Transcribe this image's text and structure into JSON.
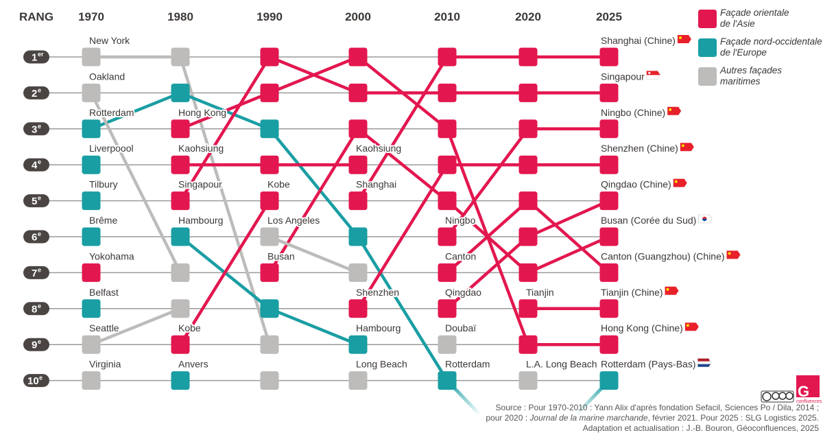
{
  "chart_data": {
    "type": "bump",
    "rank_header": "RANG",
    "rank_labels": [
      {
        "n": "1",
        "sup": "er"
      },
      {
        "n": "2",
        "sup": "e"
      },
      {
        "n": "3",
        "sup": "e"
      },
      {
        "n": "4",
        "sup": "e"
      },
      {
        "n": "5",
        "sup": "e"
      },
      {
        "n": "6",
        "sup": "e"
      },
      {
        "n": "7",
        "sup": "e"
      },
      {
        "n": "8",
        "sup": "e"
      },
      {
        "n": "9",
        "sup": "e"
      },
      {
        "n": "10",
        "sup": "e"
      }
    ],
    "colors": {
      "asie": "#e3174f",
      "europe": "#199ea3",
      "autres": "#bdbcbb"
    },
    "legend": [
      {
        "cat": "asie",
        "lines": [
          "Façade orientale",
          "de l'Asie"
        ]
      },
      {
        "cat": "europe",
        "lines": [
          "Façade nord-occidentale",
          "de l'Europe"
        ]
      },
      {
        "cat": "autres",
        "lines": [
          "Autres façades",
          "maritimes"
        ]
      }
    ],
    "columns": [
      {
        "year": "1970",
        "ports": [
          {
            "rank": 1,
            "label": "New York",
            "cat": "autres"
          },
          {
            "rank": 2,
            "label": "Oakland",
            "cat": "autres"
          },
          {
            "rank": 3,
            "label": "Rotterdam",
            "cat": "europe"
          },
          {
            "rank": 4,
            "label": "Liverpoool",
            "cat": "europe"
          },
          {
            "rank": 5,
            "label": "Tilbury",
            "cat": "europe"
          },
          {
            "rank": 6,
            "label": "Brême",
            "cat": "europe"
          },
          {
            "rank": 7,
            "label": "Yokohama",
            "cat": "asie"
          },
          {
            "rank": 8,
            "label": "Belfast",
            "cat": "europe"
          },
          {
            "rank": 9,
            "label": "Seattle",
            "cat": "autres"
          },
          {
            "rank": 10,
            "label": "Virginia",
            "cat": "autres"
          }
        ]
      },
      {
        "year": "1980",
        "ports": [
          {
            "rank": 1,
            "label": "",
            "cat": "autres"
          },
          {
            "rank": 2,
            "label": "",
            "cat": "europe"
          },
          {
            "rank": 3,
            "label": "Hong Kong",
            "cat": "asie"
          },
          {
            "rank": 4,
            "label": "Kaohsiung",
            "cat": "asie"
          },
          {
            "rank": 5,
            "label": "Singapour",
            "cat": "asie"
          },
          {
            "rank": 6,
            "label": "Hambourg",
            "cat": "europe"
          },
          {
            "rank": 7,
            "label": "",
            "cat": "autres"
          },
          {
            "rank": 8,
            "label": "",
            "cat": "autres"
          },
          {
            "rank": 9,
            "label": "Kobe",
            "cat": "asie"
          },
          {
            "rank": 10,
            "label": "Anvers",
            "cat": "europe"
          }
        ]
      },
      {
        "year": "1990",
        "ports": [
          {
            "rank": 1,
            "label": "",
            "cat": "asie"
          },
          {
            "rank": 2,
            "label": "",
            "cat": "asie"
          },
          {
            "rank": 3,
            "label": "",
            "cat": "europe"
          },
          {
            "rank": 4,
            "label": "",
            "cat": "asie"
          },
          {
            "rank": 5,
            "label": "Kobe",
            "cat": "asie"
          },
          {
            "rank": 6,
            "label": "Los Angeles",
            "cat": "autres"
          },
          {
            "rank": 7,
            "label": "Busan",
            "cat": "asie"
          },
          {
            "rank": 8,
            "label": "",
            "cat": "europe"
          },
          {
            "rank": 9,
            "label": "",
            "cat": "autres"
          },
          {
            "rank": 10,
            "label": "",
            "cat": "autres"
          }
        ]
      },
      {
        "year": "2000",
        "ports": [
          {
            "rank": 1,
            "label": "",
            "cat": "asie"
          },
          {
            "rank": 2,
            "label": "",
            "cat": "asie"
          },
          {
            "rank": 3,
            "label": "",
            "cat": "asie"
          },
          {
            "rank": 4,
            "label": "Kaohsiung",
            "cat": "asie"
          },
          {
            "rank": 5,
            "label": "Shanghai",
            "cat": "asie"
          },
          {
            "rank": 6,
            "label": "",
            "cat": "europe"
          },
          {
            "rank": 7,
            "label": "",
            "cat": "autres"
          },
          {
            "rank": 8,
            "label": "Shenzhen",
            "cat": "asie"
          },
          {
            "rank": 9,
            "label": "Hambourg",
            "cat": "europe"
          },
          {
            "rank": 10,
            "label": "Long Beach",
            "cat": "autres"
          }
        ]
      },
      {
        "year": "2010",
        "ports": [
          {
            "rank": 1,
            "label": "",
            "cat": "asie"
          },
          {
            "rank": 2,
            "label": "",
            "cat": "asie"
          },
          {
            "rank": 3,
            "label": "",
            "cat": "asie"
          },
          {
            "rank": 4,
            "label": "",
            "cat": "asie"
          },
          {
            "rank": 5,
            "label": "",
            "cat": "asie"
          },
          {
            "rank": 6,
            "label": "Ningbo",
            "cat": "asie"
          },
          {
            "rank": 7,
            "label": "Canton",
            "cat": "asie"
          },
          {
            "rank": 8,
            "label": "Qingdao",
            "cat": "asie"
          },
          {
            "rank": 9,
            "label": "Doubaï",
            "cat": "autres"
          },
          {
            "rank": 10,
            "label": "Rotterdam",
            "cat": "europe"
          }
        ]
      },
      {
        "year": "2020",
        "ports": [
          {
            "rank": 1,
            "label": "",
            "cat": "asie"
          },
          {
            "rank": 2,
            "label": "",
            "cat": "asie"
          },
          {
            "rank": 3,
            "label": "",
            "cat": "asie"
          },
          {
            "rank": 4,
            "label": "",
            "cat": "asie"
          },
          {
            "rank": 5,
            "label": "",
            "cat": "asie"
          },
          {
            "rank": 6,
            "label": "",
            "cat": "asie"
          },
          {
            "rank": 7,
            "label": "",
            "cat": "asie"
          },
          {
            "rank": 8,
            "label": "Tianjin",
            "cat": "asie"
          },
          {
            "rank": 9,
            "label": "",
            "cat": "asie"
          },
          {
            "rank": 10,
            "label": "L.A. Long Beach",
            "cat": "autres"
          }
        ]
      },
      {
        "year": "2025",
        "ports": [
          {
            "rank": 1,
            "label": "Shanghai (Chine)",
            "cat": "asie",
            "flag": "china"
          },
          {
            "rank": 2,
            "label": "Singapour",
            "cat": "asie",
            "flag": "singapore"
          },
          {
            "rank": 3,
            "label": "Ningbo (Chine)",
            "cat": "asie",
            "flag": "china"
          },
          {
            "rank": 4,
            "label": "Shenzhen (Chine)",
            "cat": "asie",
            "flag": "china"
          },
          {
            "rank": 5,
            "label": "Qingdao (Chine)",
            "cat": "asie",
            "flag": "china"
          },
          {
            "rank": 6,
            "label": "Busan (Corée du Sud)",
            "cat": "asie",
            "flag": "korea"
          },
          {
            "rank": 7,
            "label": "Canton (Guangzhou) (Chine)",
            "cat": "asie",
            "flag": "china"
          },
          {
            "rank": 8,
            "label": "Tianjin (Chine)",
            "cat": "asie",
            "flag": "china"
          },
          {
            "rank": 9,
            "label": "Hong Kong (Chine)",
            "cat": "asie",
            "flag": "china"
          },
          {
            "rank": 10,
            "label": "Rotterdam (Pays-Bas)",
            "cat": "europe",
            "flag": "netherlands"
          }
        ]
      }
    ],
    "links": [
      {
        "from": "1970",
        "to": "1980",
        "ranks": [
          1,
          1
        ],
        "cat": "autres"
      },
      {
        "from": "1970",
        "to": "1980",
        "ranks": [
          3,
          2
        ],
        "cat": "europe"
      },
      {
        "from": "1970",
        "to": "1980",
        "ranks": [
          2,
          7
        ],
        "cat": "autres"
      },
      {
        "from": "1970",
        "to": "1980",
        "ranks": [
          9,
          8
        ],
        "cat": "autres"
      },
      {
        "from": "1980",
        "to": "1990",
        "ranks": [
          1,
          9
        ],
        "cat": "autres"
      },
      {
        "from": "1980",
        "to": "1990",
        "ranks": [
          2,
          3
        ],
        "cat": "europe"
      },
      {
        "from": "1980",
        "to": "1990",
        "ranks": [
          3,
          2
        ],
        "cat": "asie"
      },
      {
        "from": "1980",
        "to": "1990",
        "ranks": [
          4,
          4
        ],
        "cat": "asie"
      },
      {
        "from": "1980",
        "to": "1990",
        "ranks": [
          5,
          1
        ],
        "cat": "asie"
      },
      {
        "from": "1980",
        "to": "1990",
        "ranks": [
          6,
          8
        ],
        "cat": "europe"
      },
      {
        "from": "1980",
        "to": "1990",
        "ranks": [
          9,
          5
        ],
        "cat": "asie"
      },
      {
        "from": "1990",
        "to": "2000",
        "ranks": [
          1,
          2
        ],
        "cat": "asie"
      },
      {
        "from": "1990",
        "to": "2000",
        "ranks": [
          2,
          1
        ],
        "cat": "asie"
      },
      {
        "from": "1990",
        "to": "2000",
        "ranks": [
          3,
          6
        ],
        "cat": "europe"
      },
      {
        "from": "1990",
        "to": "2000",
        "ranks": [
          4,
          4
        ],
        "cat": "asie"
      },
      {
        "from": "1990",
        "to": "2000",
        "ranks": [
          7,
          3
        ],
        "cat": "asie"
      },
      {
        "from": "1990",
        "to": "2000",
        "ranks": [
          6,
          7
        ],
        "cat": "autres"
      },
      {
        "from": "1990",
        "to": "2000",
        "ranks": [
          8,
          9
        ],
        "cat": "europe"
      },
      {
        "from": "2000",
        "to": "2010",
        "ranks": [
          1,
          3
        ],
        "cat": "asie"
      },
      {
        "from": "2000",
        "to": "2010",
        "ranks": [
          2,
          2
        ],
        "cat": "asie"
      },
      {
        "from": "2000",
        "to": "2010",
        "ranks": [
          3,
          5
        ],
        "cat": "asie"
      },
      {
        "from": "2000",
        "to": "2010",
        "ranks": [
          5,
          1
        ],
        "cat": "asie"
      },
      {
        "from": "2000",
        "to": "2010",
        "ranks": [
          6,
          10
        ],
        "cat": "europe"
      },
      {
        "from": "2000",
        "to": "2010",
        "ranks": [
          8,
          4
        ],
        "cat": "asie"
      },
      {
        "from": "2010",
        "to": "2020",
        "ranks": [
          1,
          1
        ],
        "cat": "asie"
      },
      {
        "from": "2010",
        "to": "2020",
        "ranks": [
          2,
          2
        ],
        "cat": "asie"
      },
      {
        "from": "2010",
        "to": "2020",
        "ranks": [
          3,
          9
        ],
        "cat": "asie"
      },
      {
        "from": "2010",
        "to": "2020",
        "ranks": [
          4,
          4
        ],
        "cat": "asie"
      },
      {
        "from": "2010",
        "to": "2020",
        "ranks": [
          5,
          7
        ],
        "cat": "asie"
      },
      {
        "from": "2010",
        "to": "2020",
        "ranks": [
          6,
          3
        ],
        "cat": "asie"
      },
      {
        "from": "2010",
        "to": "2020",
        "ranks": [
          7,
          5
        ],
        "cat": "asie"
      },
      {
        "from": "2010",
        "to": "2020",
        "ranks": [
          8,
          6
        ],
        "cat": "asie"
      },
      {
        "from": "2020",
        "to": "2025",
        "ranks": [
          1,
          1
        ],
        "cat": "asie"
      },
      {
        "from": "2020",
        "to": "2025",
        "ranks": [
          2,
          2
        ],
        "cat": "asie"
      },
      {
        "from": "2020",
        "to": "2025",
        "ranks": [
          3,
          3
        ],
        "cat": "asie"
      },
      {
        "from": "2020",
        "to": "2025",
        "ranks": [
          4,
          4
        ],
        "cat": "asie"
      },
      {
        "from": "2020",
        "to": "2025",
        "ranks": [
          5,
          7
        ],
        "cat": "asie"
      },
      {
        "from": "2020",
        "to": "2025",
        "ranks": [
          6,
          5
        ],
        "cat": "asie"
      },
      {
        "from": "2020",
        "to": "2025",
        "ranks": [
          7,
          6
        ],
        "cat": "asie"
      },
      {
        "from": "2020",
        "to": "2025",
        "ranks": [
          8,
          8
        ],
        "cat": "asie"
      },
      {
        "from": "2020",
        "to": "2025",
        "ranks": [
          9,
          9
        ],
        "cat": "asie"
      }
    ],
    "exits": [
      {
        "year": "2010",
        "rank": 10,
        "direction": "down-right",
        "cat": "europe"
      },
      {
        "year": "2025",
        "rank": 10,
        "direction": "down-left",
        "cat": "europe"
      }
    ]
  },
  "source": {
    "line1": "Source :  Pour 1970-2010 : Yann Alix d'après fondation Sefacil, Sciences Po / Dila, 2014 ;",
    "line2_prefix": "pour 2020 : ",
    "line2_italic": "Journal de la marine marchande",
    "line2_suffix": ", février 2021. Pour 2025 : SLG Logistics 2025.",
    "line3": "Adaptation et actualisation : J.-B. Bouron, Géoconfluences, 2025"
  },
  "logos": {
    "license": "cc by nc sa",
    "brand": "Géoconfluences"
  }
}
